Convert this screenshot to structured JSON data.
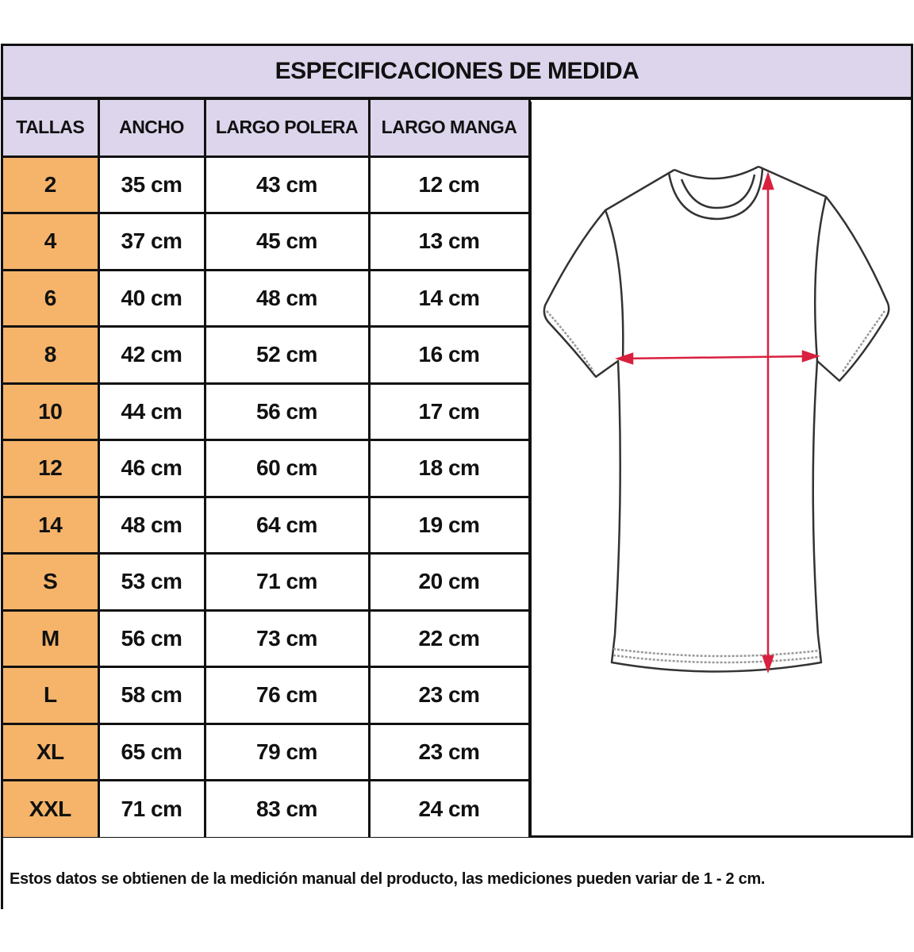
{
  "title": "ESPECIFICACIONES DE MEDIDA",
  "headers": [
    "TALLAS",
    "ANCHO",
    "LARGO POLERA",
    "LARGO MANGA"
  ],
  "rows": [
    [
      "2",
      "35 cm",
      "43 cm",
      "12 cm"
    ],
    [
      "4",
      "37 cm",
      "45 cm",
      "13 cm"
    ],
    [
      "6",
      "40 cm",
      "48 cm",
      "14 cm"
    ],
    [
      "8",
      "42 cm",
      "52 cm",
      "16 cm"
    ],
    [
      "10",
      "44 cm",
      "56 cm",
      "17 cm"
    ],
    [
      "12",
      "46 cm",
      "60 cm",
      "18 cm"
    ],
    [
      "14",
      "48 cm",
      "64 cm",
      "19 cm"
    ],
    [
      "S",
      "53 cm",
      "71 cm",
      "20 cm"
    ],
    [
      "M",
      "56 cm",
      "73 cm",
      "22 cm"
    ],
    [
      "L",
      "58 cm",
      "76 cm",
      "23 cm"
    ],
    [
      "XL",
      "65 cm",
      "79 cm",
      "23 cm"
    ],
    [
      "XXL",
      "71 cm",
      "83 cm",
      "24 cm"
    ]
  ],
  "footer": "Estos datos se obtienen de la medición manual del producto, las mediciones pueden variar de 1 - 2 cm.",
  "colors": {
    "header_bg": "#ddd5ec",
    "size_bg": "#f5b46a",
    "arrow": "#d9203f",
    "line": "#111111"
  },
  "illustration": "t-shirt-measurement-diagram"
}
